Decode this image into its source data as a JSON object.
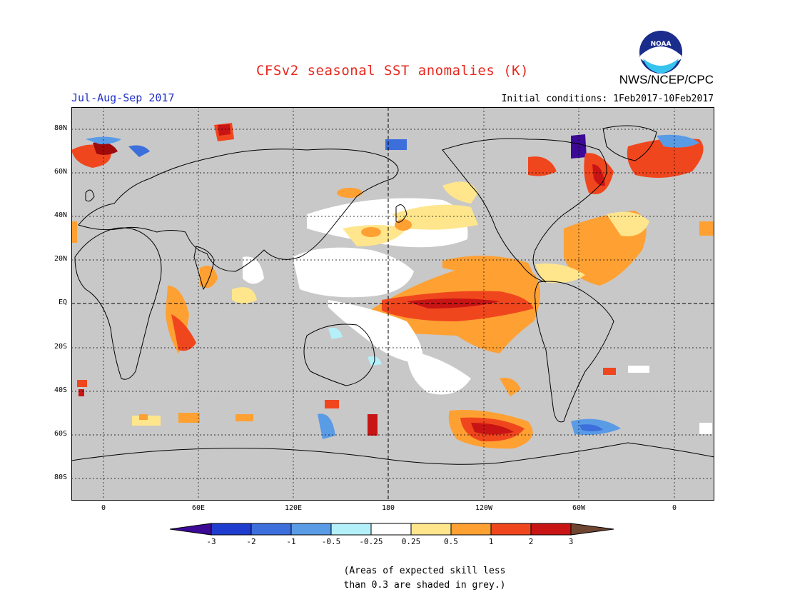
{
  "header": {
    "title": "CFSv2 seasonal SST anomalies (K)",
    "season": "Jul-Aug-Sep 2017",
    "initial_conditions": "Initial conditions: 1Feb2017-10Feb2017",
    "agency": "NWS/NCEP/CPC",
    "logo_text": "NOAA"
  },
  "map": {
    "lat_labels": [
      "80N",
      "60N",
      "40N",
      "20N",
      "EQ",
      "20S",
      "40S",
      "60S",
      "80S"
    ],
    "lon_labels": [
      "0",
      "60E",
      "120E",
      "180",
      "120W",
      "60W",
      "0"
    ],
    "background_color": "#c8c8c8"
  },
  "colorbar": {
    "tick_labels": [
      "-3",
      "-2",
      "-1",
      "-0.5",
      "-0.25",
      "0.25",
      "0.5",
      "1",
      "2",
      "3"
    ],
    "colors": [
      "#1e3ccd",
      "#3c6edc",
      "#5a9be6",
      "#b4f0fa",
      "#ffffff",
      "#ffe68c",
      "#ffa032",
      "#f0461e",
      "#c81414",
      "#a00a0a"
    ],
    "low_color": "#3c0a96",
    "high_color": "#6e4632"
  },
  "footnote": {
    "line1": "(Areas of expected skill less",
    "line2": "than 0.3 are shaded in grey.)"
  }
}
